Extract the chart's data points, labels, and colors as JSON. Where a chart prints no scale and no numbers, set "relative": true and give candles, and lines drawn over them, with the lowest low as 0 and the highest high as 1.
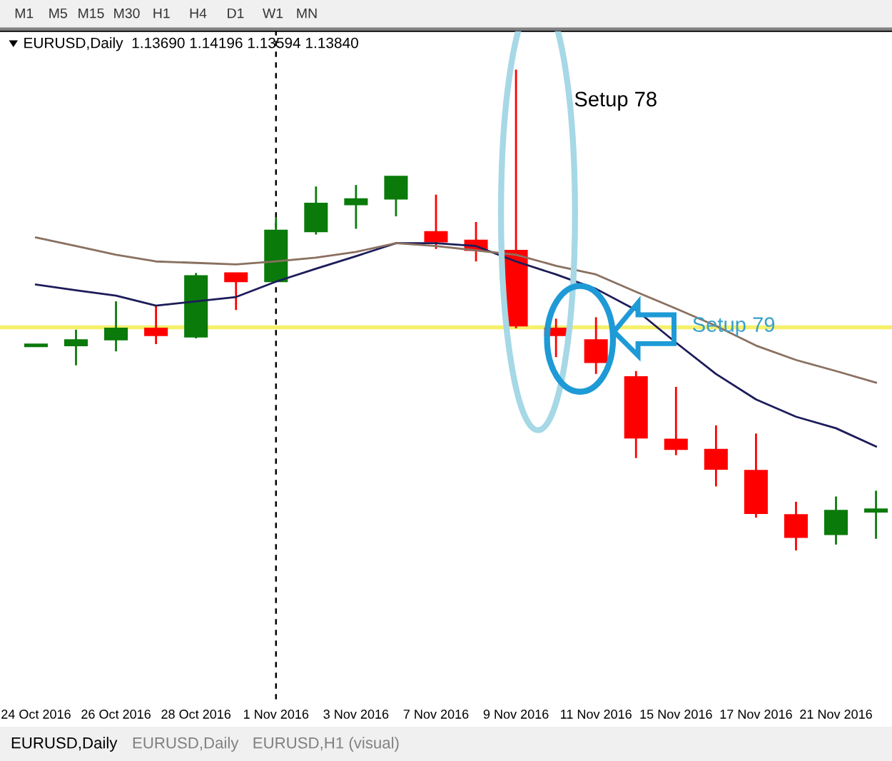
{
  "chart_data": {
    "type": "candlestick",
    "relative": true,
    "title": "EURUSD,Daily  1.13690 1.14196 1.13594 1.13840",
    "categories": [
      "24 Oct 2016",
      null,
      "26 Oct 2016",
      null,
      "28 Oct 2016",
      null,
      "1 Nov 2016",
      null,
      "3 Nov 2016",
      null,
      "7 Nov 2016",
      null,
      "9 Nov 2016",
      null,
      "11 Nov 2016",
      null,
      "15 Nov 2016",
      null,
      "17 Nov 2016",
      null,
      "21 Nov 2016",
      null
    ],
    "series": [
      {
        "colors": [
          "#0a7a0a",
          "#0a7a0a",
          "#0a7a0a",
          "#ff0000",
          "#0a7a0a",
          "#ff0000",
          "#0a7a0a",
          "#0a7a0a",
          "#0a7a0a",
          "#0a7a0a",
          "#ff0000",
          "#ff0000",
          "#ff0000",
          "#ff0000",
          "#ff0000",
          "#ff0000",
          "#ff0000",
          "#ff0000",
          "#ff0000",
          "#ff0000",
          "#0a7a0a",
          "#0a7a0a"
        ],
        "ohlc": [
          [
            0.424,
            0.429,
            0.424,
            0.429
          ],
          [
            0.426,
            0.459,
            0.385,
            0.438
          ],
          [
            0.438,
            0.518,
            0.414,
            0.462
          ],
          [
            0.462,
            0.509,
            0.429,
            0.447
          ],
          [
            0.444,
            0.577,
            0.441,
            0.571
          ],
          [
            0.577,
            0.577,
            0.5,
            0.559
          ],
          [
            0.559,
            0.692,
            0.559,
            0.666
          ],
          [
            0.663,
            0.757,
            0.657,
            0.722
          ],
          [
            0.719,
            0.76,
            0.669,
            0.731
          ],
          [
            0.731,
            0.778,
            0.695,
            0.778
          ],
          [
            0.663,
            0.74,
            0.627,
            0.642
          ],
          [
            0.645,
            0.683,
            0.601,
            0.624
          ],
          [
            0.624,
            1,
            0.462,
            0.467
          ],
          [
            0.462,
            0.482,
            0.402,
            0.447
          ],
          [
            0.438,
            0.485,
            0.367,
            0.391
          ],
          [
            0.361,
            0.373,
            0.192,
            0.234
          ],
          [
            0.231,
            0.34,
            0.198,
            0.21
          ],
          [
            0.21,
            0.26,
            0.133,
            0.169
          ],
          [
            0.166,
            0.243,
            0.068,
            0.077
          ],
          [
            0.074,
            0.101,
            0,
            0.027
          ],
          [
            0.033,
            0.112,
            0.012,
            0.083
          ],
          [
            0.08,
            0.124,
            0.024,
            0.086
          ]
        ]
      },
      {
        "type": "line",
        "color": "#1c1c5a",
        "values": [
          0.553,
          0.541,
          0.53,
          0.509,
          0.518,
          0.527,
          0.559,
          0.586,
          0.612,
          0.639,
          0.639,
          0.633,
          0.601,
          0.574,
          0.544,
          0.5,
          0.432,
          0.367,
          0.314,
          0.278,
          0.254,
          0.216
        ]
      },
      {
        "type": "line",
        "color": "#8a7060",
        "values": [
          0.651,
          0.633,
          0.615,
          0.601,
          0.598,
          0.595,
          0.601,
          0.609,
          0.621,
          0.639,
          0.633,
          0.624,
          0.615,
          0.592,
          0.574,
          0.538,
          0.503,
          0.467,
          0.426,
          0.396,
          0.373,
          0.349
        ]
      }
    ],
    "ref_lines": [
      {
        "axis": "y",
        "value": 0.464,
        "color": "#f5f06a",
        "line_style": "solid"
      },
      {
        "axis": "x",
        "value": "1 Nov 2016",
        "color": "#000000",
        "line_style": "dashed"
      }
    ],
    "annotations": [
      "M1",
      "M5",
      "M15",
      "M30",
      "H1",
      "H4",
      "D1",
      "W1",
      "MN",
      "Setup 78",
      "Setup 79",
      "EURUSD,Daily",
      "EURUSD,Daily",
      "EURUSD,H1 (visual)"
    ],
    "grid": false,
    "marker": "none"
  }
}
